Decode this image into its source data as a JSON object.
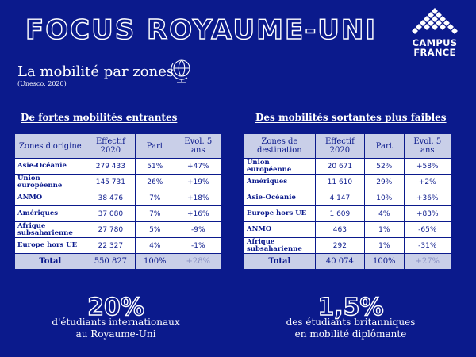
{
  "header": {
    "title": "FOCUS ROYAUME-UNI",
    "logo_line1": "CAMPUS",
    "logo_line2": "FRANCE"
  },
  "subtitle": "La mobilité par zones",
  "source": "(Unesco, 2020)",
  "left": {
    "heading": "De fortes mobilités entrantes",
    "columns": [
      "Zones d'origine",
      "Effectif 2020",
      "Part",
      "Evol. 5 ans"
    ],
    "rows": [
      {
        "zone": "Asie-Océanie",
        "effectif": "279 433",
        "part": "51%",
        "evol": "+47%"
      },
      {
        "zone": "Union européenne",
        "effectif": "145 731",
        "part": "26%",
        "evol": "+19%"
      },
      {
        "zone": "ANMO",
        "effectif": "38 476",
        "part": "7%",
        "evol": "+18%"
      },
      {
        "zone": "Amériques",
        "effectif": "37 080",
        "part": "7%",
        "evol": "+16%"
      },
      {
        "zone": "Afrique subsaharienne",
        "effectif": "27 780",
        "part": "5%",
        "evol": "-9%"
      },
      {
        "zone": "Europe hors UE",
        "effectif": "22 327",
        "part": "4%",
        "evol": "-1%"
      }
    ],
    "total": {
      "zone": "Total",
      "effectif": "550 827",
      "part": "100%",
      "evol": "+28%"
    },
    "stat": "20%",
    "caption1": "d'étudiants internationaux",
    "caption2": "au Royaume-Uni"
  },
  "right": {
    "heading": "Des mobilités sortantes plus faibles",
    "columns": [
      "Zones de destination",
      "Effectif 2020",
      "Part",
      "Evol. 5 ans"
    ],
    "rows": [
      {
        "zone": "Union européenne",
        "effectif": "20 671",
        "part": "52%",
        "evol": "+58%"
      },
      {
        "zone": "Amériques",
        "effectif": "11 610",
        "part": "29%",
        "evol": "+2%"
      },
      {
        "zone": "Asie-Océanie",
        "effectif": "4 147",
        "part": "10%",
        "evol": "+36%"
      },
      {
        "zone": "Europe hors UE",
        "effectif": "1 609",
        "part": "4%",
        "evol": "+83%"
      },
      {
        "zone": "ANMO",
        "effectif": "463",
        "part": "1%",
        "evol": "-65%"
      },
      {
        "zone": "Afrique subsaharienne",
        "effectif": "292",
        "part": "1%",
        "evol": "-31%"
      }
    ],
    "total": {
      "zone": "Total",
      "effectif": "40 074",
      "part": "100%",
      "evol": "+27%"
    },
    "stat": "1,5%",
    "caption1": "des étudiants britanniques",
    "caption2": "en mobilité diplômante"
  },
  "colors": {
    "background": "#0b1a8c",
    "header_cell": "#c9cfe8",
    "text_on_dark": "#ffffff"
  }
}
